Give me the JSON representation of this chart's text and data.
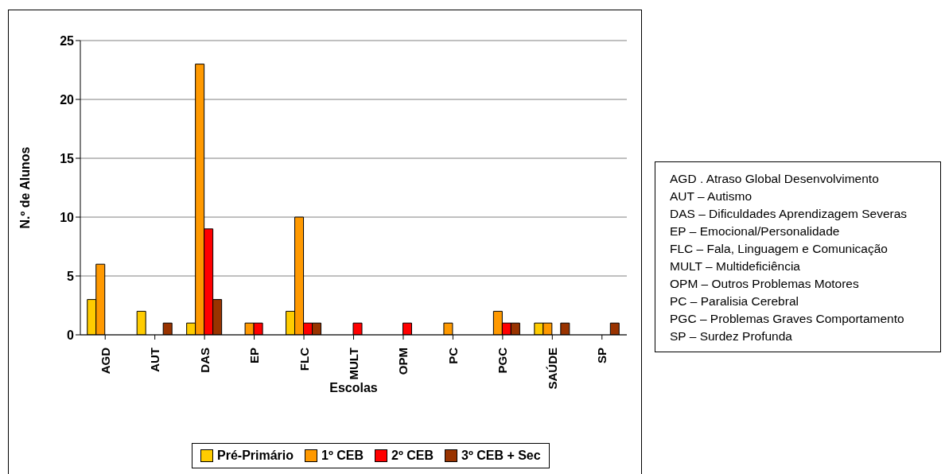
{
  "chart_data": {
    "type": "bar",
    "xlabel": "Escolas",
    "ylabel": "N.º de Alunos",
    "categories": [
      "AGD",
      "AUT",
      "DAS",
      "EP",
      "FLC",
      "MULT",
      "OPM",
      "PC",
      "PGC",
      "SAÚDE",
      "SP"
    ],
    "series": [
      {
        "name": "Pré-Primário",
        "color": "#ffcc00",
        "values": [
          3,
          2,
          1,
          null,
          2,
          null,
          null,
          null,
          null,
          1,
          null
        ]
      },
      {
        "name": "1º CEB",
        "color": "#ff9900",
        "values": [
          6,
          null,
          23,
          1,
          10,
          null,
          null,
          1,
          2,
          1,
          null
        ]
      },
      {
        "name": "2º CEB",
        "color": "#ff0000",
        "values": [
          null,
          null,
          9,
          1,
          1,
          1,
          1,
          null,
          1,
          null,
          null
        ]
      },
      {
        "name": "3º CEB + Sec",
        "color": "#993300",
        "values": [
          null,
          1,
          3,
          null,
          1,
          null,
          null,
          null,
          1,
          1,
          1
        ]
      }
    ],
    "ylim": [
      0,
      25
    ],
    "yticks": [
      0,
      5,
      10,
      15,
      20,
      25
    ],
    "grid": "y",
    "legend": "bottom",
    "annotations": [
      "AGD . Atraso Global Desenvolvimento",
      "AUT – Autismo",
      "DAS – Dificuldades Aprendizagem Severas",
      "EP – Emocional/Personalidade",
      "FLC – Fala, Linguagem e Comunicação",
      "MULT – Multideficiência",
      "OPM – Outros Problemas Motores",
      "PC – Paralisia Cerebral",
      "PGC – Problemas Graves Comportamento",
      "SP – Surdez Profunda"
    ]
  }
}
